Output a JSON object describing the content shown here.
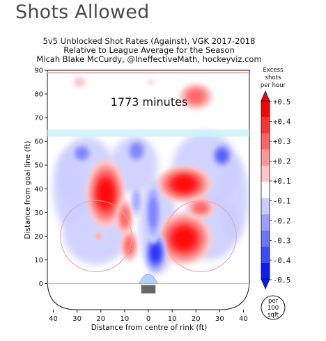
{
  "page": {
    "heading": "Shots Allowed"
  },
  "chart_data": {
    "type": "heatmap",
    "title_lines": [
      "5v5 Unblocked Shot Rates (Against), VGK 2017-2018",
      "Relative to League Average for the Season",
      "Micah Blake McCurdy, @IneffectiveMath, hockeyviz.com"
    ],
    "annotation": "1773 minutes",
    "xlabel": "Distance from centre of rink (ft)",
    "ylabel": "Distance from goal line (ft)",
    "x_ticks": [
      {
        "v": -40,
        "t": "40"
      },
      {
        "v": -30,
        "t": "30"
      },
      {
        "v": -20,
        "t": "20"
      },
      {
        "v": -10,
        "t": "10"
      },
      {
        "v": 0,
        "t": "0"
      },
      {
        "v": 10,
        "t": "10"
      },
      {
        "v": 20,
        "t": "20"
      },
      {
        "v": 30,
        "t": "30"
      },
      {
        "v": 40,
        "t": "40"
      }
    ],
    "y_ticks": [
      0,
      10,
      20,
      30,
      40,
      50,
      60,
      70,
      80,
      90
    ],
    "xlim": [
      -42.5,
      42.5
    ],
    "ylim": [
      -11,
      90
    ],
    "colorbar": {
      "label_lines": [
        "Excess",
        "shots",
        "per hour"
      ],
      "ticks": [
        "+0.5",
        "+0.4",
        "+0.3",
        "+0.2",
        "+0.1",
        "-0.1",
        "-0.2",
        "-0.3",
        "-0.4",
        "-0.5"
      ],
      "unit_lines": [
        "per",
        "100",
        "sqft"
      ],
      "colors": [
        "#0c1cff",
        "#3a4bff",
        "#6b76ff",
        "#9a9fff",
        "#c9cbff",
        "#ffffff",
        "#ffc4c4",
        "#ff9595",
        "#ff6464",
        "#ff3232",
        "#ff0000"
      ]
    },
    "blobs": [
      {
        "x": -18,
        "y": 38,
        "rx": 7,
        "ry": 13,
        "level": 0.45
      },
      {
        "x": -10,
        "y": 28,
        "rx": 3,
        "ry": 7,
        "level": 0.3
      },
      {
        "x": -8,
        "y": 16,
        "rx": 3,
        "ry": 6,
        "level": 0.25
      },
      {
        "x": 15,
        "y": 42,
        "rx": 10,
        "ry": 7,
        "level": 0.45
      },
      {
        "x": 15,
        "y": 19,
        "rx": 10,
        "ry": 10,
        "level": 0.5
      },
      {
        "x": 22,
        "y": 32,
        "rx": 5,
        "ry": 4,
        "level": 0.25
      },
      {
        "x": 20,
        "y": 79,
        "rx": 6,
        "ry": 5,
        "level": 0.25
      },
      {
        "x": -29,
        "y": 85,
        "rx": 2,
        "ry": 2,
        "level": 0.15
      },
      {
        "x": -21,
        "y": 20,
        "rx": 1.5,
        "ry": 1.5,
        "level": 0.2
      },
      {
        "x": 1,
        "y": 85,
        "rx": 1,
        "ry": 1,
        "level": 0.1
      },
      {
        "x": 3,
        "y": 13,
        "rx": 4,
        "ry": 8,
        "level": -0.45
      },
      {
        "x": 2,
        "y": 30,
        "rx": 3,
        "ry": 12,
        "level": -0.25
      },
      {
        "x": -28,
        "y": 55,
        "rx": 4,
        "ry": 4,
        "level": -0.3
      },
      {
        "x": -5,
        "y": 56,
        "rx": 4,
        "ry": 5,
        "level": -0.3
      },
      {
        "x": 31,
        "y": 54,
        "rx": 4,
        "ry": 5,
        "level": -0.4
      },
      {
        "x": -5,
        "y": 35,
        "rx": 2,
        "ry": 6,
        "level": -0.2
      }
    ]
  }
}
